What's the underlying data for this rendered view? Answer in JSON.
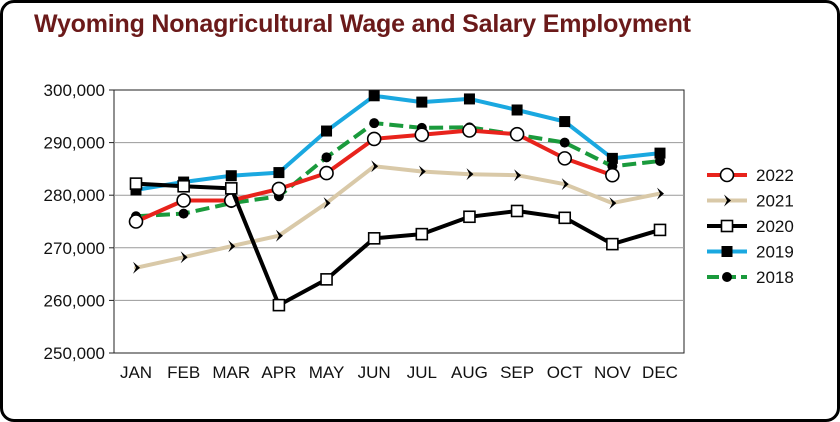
{
  "chart_data": {
    "type": "line",
    "title": "Wyoming Nonagricultural Wage and Salary Employment",
    "xlabel": "",
    "ylabel": "",
    "categories": [
      "JAN",
      "FEB",
      "MAR",
      "APR",
      "MAY",
      "JUN",
      "JUL",
      "AUG",
      "SEP",
      "OCT",
      "NOV",
      "DEC"
    ],
    "ylim": [
      250000,
      300000
    ],
    "yticks": [
      250000,
      260000,
      270000,
      280000,
      290000,
      300000
    ],
    "ytick_labels": [
      "250,000",
      "260,000",
      "270,000",
      "280,000",
      "290,000",
      "300,000"
    ],
    "grid": "horizontal",
    "legend_position": "right",
    "series": [
      {
        "name": "2019",
        "color": "#1aa8e0",
        "marker": "square-filled",
        "values": [
          281000,
          282500,
          283700,
          284300,
          292200,
          298900,
          297700,
          298300,
          296200,
          294000,
          287000,
          288000
        ]
      },
      {
        "name": "2018",
        "color": "#1a9a3c",
        "marker": "circle-filled",
        "dashed": true,
        "values": [
          276000,
          276500,
          278500,
          279800,
          287200,
          293700,
          292800,
          292900,
          291500,
          290000,
          285500,
          286500
        ]
      },
      {
        "name": "2022",
        "color": "#e8231c",
        "marker": "circle-open",
        "values": [
          275000,
          279000,
          279000,
          281200,
          284200,
          290700,
          291500,
          292300,
          291600,
          287000,
          283800,
          null
        ]
      },
      {
        "name": "2021",
        "color": "#d9c9a8",
        "marker": "arrow",
        "values": [
          266200,
          268200,
          270300,
          272300,
          278500,
          285500,
          284500,
          284000,
          283800,
          282100,
          278500,
          280300
        ]
      },
      {
        "name": "2020",
        "color": "#000000",
        "marker": "square-open",
        "values": [
          282200,
          281700,
          281300,
          259100,
          264000,
          271800,
          272600,
          275900,
          277000,
          275700,
          270700,
          273400
        ]
      }
    ],
    "legend_order": [
      "2022",
      "2021",
      "2020",
      "2019",
      "2018"
    ]
  }
}
